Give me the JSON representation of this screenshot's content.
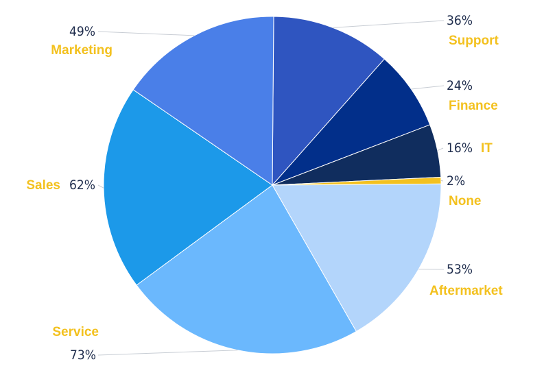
{
  "label_color": "#f3c11f",
  "chart_data": {
    "type": "pie",
    "slices": [
      {
        "category": "Support",
        "value": 36,
        "label": "36%",
        "color": "#2f55c0"
      },
      {
        "category": "Finance",
        "value": 24,
        "label": "24%",
        "color": "#022f8a"
      },
      {
        "category": "IT",
        "value": 16,
        "label": "16%",
        "color": "#102d5e"
      },
      {
        "category": "None",
        "value": 2,
        "label": "2%",
        "color": "#f3c11f"
      },
      {
        "category": "Aftermarket",
        "value": 53,
        "label": "53%",
        "color": "#b3d5fb"
      },
      {
        "category": "Service",
        "value": 73,
        "label": "73%",
        "color": "#6bb8fd"
      },
      {
        "category": "Sales",
        "value": 62,
        "label": "62%",
        "color": "#1c99e9"
      },
      {
        "category": "Marketing",
        "value": 49,
        "label": "49%",
        "color": "#4a7fe8"
      }
    ]
  }
}
